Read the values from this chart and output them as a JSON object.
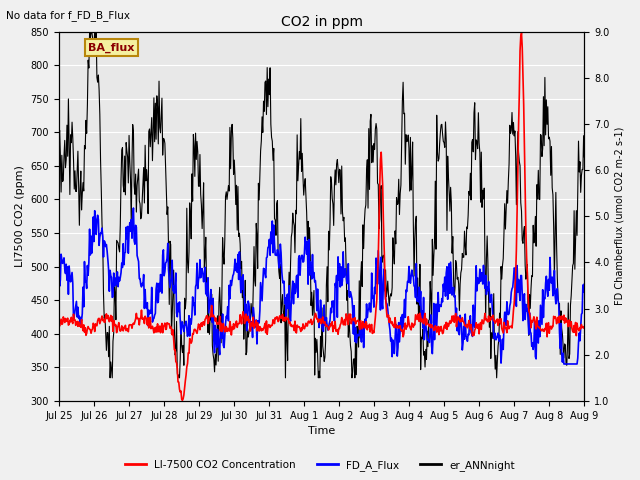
{
  "title": "CO2 in ppm",
  "top_left_text": "No data for f_FD_B_Flux",
  "ba_flux_label": "BA_flux",
  "xlabel": "Time",
  "ylabel_left": "LI7500 CO2 (ppm)",
  "ylabel_right_raw": "FD Chamberflux (umol CO2 m-2 s-1)",
  "ylim_left": [
    300,
    850
  ],
  "ylim_right": [
    1.0,
    9.0
  ],
  "yticks_left": [
    300,
    350,
    400,
    450,
    500,
    550,
    600,
    650,
    700,
    750,
    800,
    850
  ],
  "yticks_right": [
    1.0,
    2.0,
    3.0,
    4.0,
    5.0,
    6.0,
    7.0,
    8.0,
    9.0
  ],
  "xtick_labels": [
    "Jul 25",
    "Jul 26",
    "Jul 27",
    "Jul 28",
    "Jul 29",
    "Jul 30",
    "Jul 31",
    "Aug 1",
    "Aug 2",
    "Aug 3",
    "Aug 4",
    "Aug 5",
    "Aug 6",
    "Aug 7",
    "Aug 8",
    "Aug 9"
  ],
  "legend_labels": [
    "LI-7500 CO2 Concentration",
    "FD_A_Flux",
    "er_ANNnight"
  ],
  "plot_bg_color": "#e8e8e8",
  "fig_bg_color": "#f0f0f0",
  "n_days": 15,
  "pts_per_day": 48
}
